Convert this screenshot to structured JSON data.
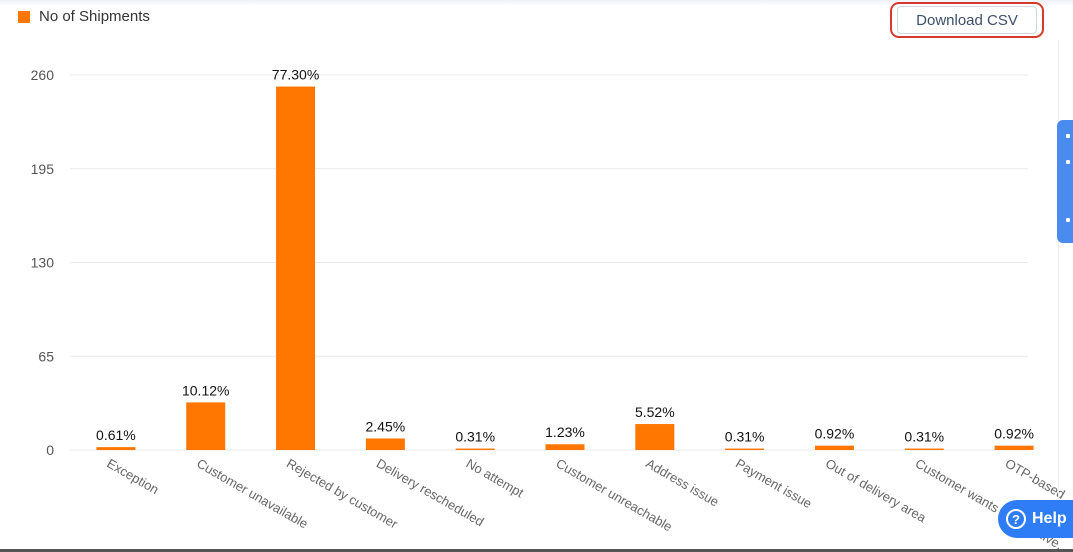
{
  "legend": {
    "label": "No of Shipments",
    "color": "#ff7700"
  },
  "toolbar": {
    "download_label": "Download CSV"
  },
  "help": {
    "label": "Help",
    "icon": "question-circle-icon"
  },
  "chart_data": {
    "type": "bar",
    "title": "",
    "xlabel": "",
    "ylabel": "",
    "ylim": [
      0,
      260
    ],
    "yticks": [
      "0",
      "65",
      "130",
      "195",
      "260"
    ],
    "grid": true,
    "legend_position": "top-left",
    "bar_color": "#ff7700",
    "categories": [
      "Exception",
      "Customer unavailable",
      "Rejected by customer",
      "Delivery rescheduled",
      "No attempt",
      "Customer unreachable",
      "Address issue",
      "Payment issue",
      "Out of delivery area",
      "Customer wants open delive...",
      "OTP-based ..."
    ],
    "values": [
      2,
      33,
      252,
      8,
      1,
      4,
      18,
      1,
      3,
      1,
      3
    ],
    "data_labels": [
      "0.61%",
      "10.12%",
      "77.30%",
      "2.45%",
      "0.31%",
      "1.23%",
      "5.52%",
      "0.31%",
      "0.92%",
      "0.31%",
      "0.92%"
    ]
  }
}
